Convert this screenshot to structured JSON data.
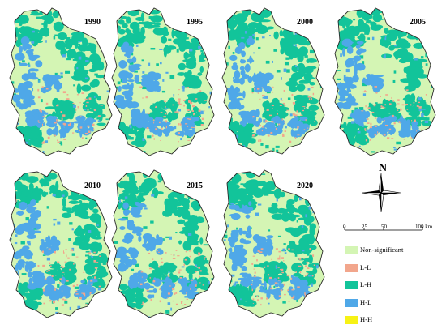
{
  "map_panels": [
    {
      "year": "1990"
    },
    {
      "year": "1995"
    },
    {
      "year": "2000"
    },
    {
      "year": "2005"
    },
    {
      "year": "2010"
    },
    {
      "year": "2015"
    },
    {
      "year": "2020"
    }
  ],
  "north_label": "N",
  "scale_bar": {
    "ticks": [
      "0",
      "25",
      "50",
      "100 km"
    ]
  },
  "legend": [
    {
      "label": "Non-significant",
      "color": "#d4f5b4"
    },
    {
      "label": "L-L",
      "color": "#f2a68c"
    },
    {
      "label": "L-H",
      "color": "#12c49a"
    },
    {
      "label": "H-L",
      "color": "#4fa8e8"
    },
    {
      "label": "H-H",
      "color": "#f7f215"
    }
  ],
  "colors": {
    "non_significant": "#d4f5b4",
    "ll": "#f2a68c",
    "lh": "#12c49a",
    "hl": "#4fa8e8",
    "hh": "#f7f215",
    "outline": "#2b2b2b"
  }
}
